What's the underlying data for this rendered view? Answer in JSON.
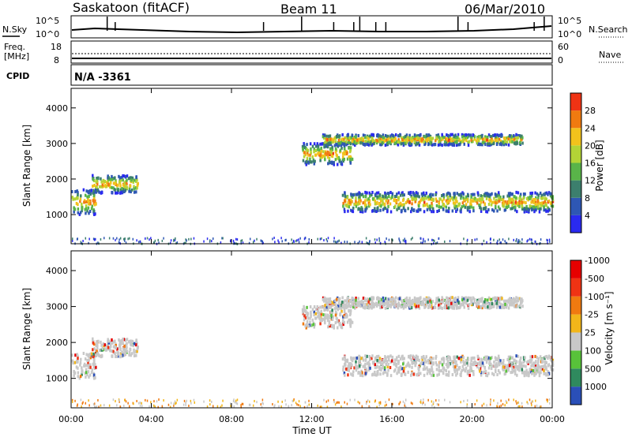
{
  "header": {
    "station": "Saskatoon (fitACF)",
    "beam": "Beam 11",
    "date": "06/Mar/2010"
  },
  "status_panels": {
    "nsky_label": "N.Sky",
    "nsearch_label": "N.Search",
    "noise_tick_top": "10^5",
    "noise_tick_bottom": "10^0",
    "freq_label_1": "Freq.",
    "freq_label_2": "[MHz]",
    "freq_tick_top": "18",
    "freq_tick_bottom": "8",
    "nave_label": "Nave",
    "nave_tick_top": "60",
    "nave_tick_bottom": "0",
    "cpid_label": "CPID",
    "cpid_value": "N/A -3361"
  },
  "chart_data": [
    {
      "type": "heatmap",
      "name": "power",
      "ylabel": "Slant Range [km]",
      "yticks": [
        "1000",
        "2000",
        "3000",
        "4000"
      ],
      "ylim": [
        180,
        4550
      ],
      "colorbar_label": "Power [dB]",
      "colorbar_ticks": [
        "4",
        "8",
        "12",
        "16",
        "20",
        "24",
        "28"
      ],
      "colorbar_colors": [
        "#2a2af0",
        "#2e57b4",
        "#3c7f6d",
        "#59b449",
        "#b3d436",
        "#f2c21c",
        "#f07a10",
        "#ef3314"
      ],
      "scatter_regions": [
        {
          "t_start": 0.0,
          "t_end": 1.2,
          "r_center": 1350,
          "r_width": 700
        },
        {
          "t_start": 1.0,
          "t_end": 3.3,
          "r_center": 1850,
          "r_width": 500
        },
        {
          "t_start": 13.5,
          "t_end": 24.0,
          "r_center": 1350,
          "r_width": 550
        },
        {
          "t_start": 11.5,
          "t_end": 14.0,
          "r_center": 2700,
          "r_width": 600
        },
        {
          "t_start": 12.5,
          "t_end": 22.5,
          "r_center": 3100,
          "r_width": 300
        }
      ]
    },
    {
      "type": "heatmap",
      "name": "velocity",
      "ylabel": "Slant Range [km]",
      "yticks": [
        "1000",
        "2000",
        "3000",
        "4000"
      ],
      "ylim": [
        180,
        4550
      ],
      "colorbar_label": "Velocity [m s⁻¹]",
      "colorbar_ticks": [
        "1000",
        "500",
        "100",
        "25",
        "-25",
        "-100",
        "-500",
        "-1000"
      ],
      "colorbar_colors": [
        "#2a4fb8",
        "#2f8a5e",
        "#58c23a",
        "#c8c8c8",
        "#f2b61a",
        "#f07a10",
        "#ef3314",
        "#e60000"
      ],
      "xlabel": "Time UT",
      "xticks": [
        "00:00",
        "04:00",
        "08:00",
        "12:00",
        "16:00",
        "20:00",
        "00:00"
      ],
      "xlim": [
        0,
        24
      ]
    }
  ]
}
